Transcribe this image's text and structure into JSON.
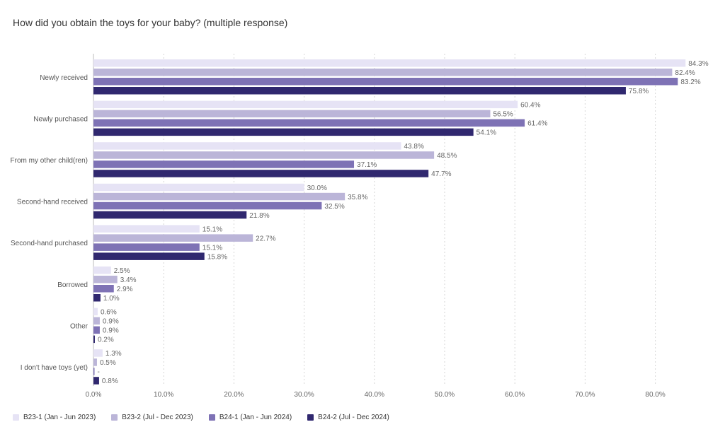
{
  "chart_data": {
    "type": "bar",
    "orientation": "horizontal",
    "title": "How did you obtain the toys for your baby? (multiple response)",
    "categories": [
      "Newly received",
      "Newly purchased",
      "From my other child(ren)",
      "Second-hand received",
      "Second-hand purchased",
      "Borrowed",
      "Other",
      "I don't have toys (yet)"
    ],
    "series": [
      {
        "name": "B23-1 (Jan - Jun 2023)",
        "color": "#e6e3f5",
        "values": [
          84.3,
          60.4,
          43.8,
          30.0,
          15.1,
          2.5,
          0.6,
          1.3
        ],
        "labels": [
          "84.3%",
          "60.4%",
          "43.8%",
          "30.0%",
          "15.1%",
          "2.5%",
          "0.6%",
          "1.3%"
        ]
      },
      {
        "name": "B23-2 (Jul - Dec 2023)",
        "color": "#bbb5d8",
        "values": [
          82.4,
          56.5,
          48.5,
          35.8,
          22.7,
          3.4,
          0.9,
          0.5
        ],
        "labels": [
          "82.4%",
          "56.5%",
          "48.5%",
          "35.8%",
          "22.7%",
          "3.4%",
          "0.9%",
          "0.5%"
        ]
      },
      {
        "name": "B24-1 (Jan - Jun 2024)",
        "color": "#7e72b5",
        "values": [
          83.2,
          61.4,
          37.1,
          32.5,
          15.1,
          2.9,
          0.9,
          0.1
        ],
        "labels": [
          "83.2%",
          "61.4%",
          "37.1%",
          "32.5%",
          "15.1%",
          "2.9%",
          "0.9%",
          "-"
        ]
      },
      {
        "name": "B24-2 (Jul - Dec 2024)",
        "color": "#30286f",
        "values": [
          75.8,
          54.1,
          47.7,
          21.8,
          15.8,
          1.0,
          0.2,
          0.8
        ],
        "labels": [
          "75.8%",
          "54.1%",
          "47.7%",
          "21.8%",
          "15.8%",
          "1.0%",
          "0.2%",
          "0.8%"
        ]
      }
    ],
    "xlim": [
      0,
      85
    ],
    "ticks": [
      0,
      10,
      20,
      30,
      40,
      50,
      60,
      70,
      80
    ],
    "tick_labels": [
      "0.0%",
      "10.0%",
      "20.0%",
      "30.0%",
      "40.0%",
      "50.0%",
      "60.0%",
      "70.0%",
      "80.0%"
    ],
    "grid": true,
    "legend_position": "bottom-left"
  }
}
